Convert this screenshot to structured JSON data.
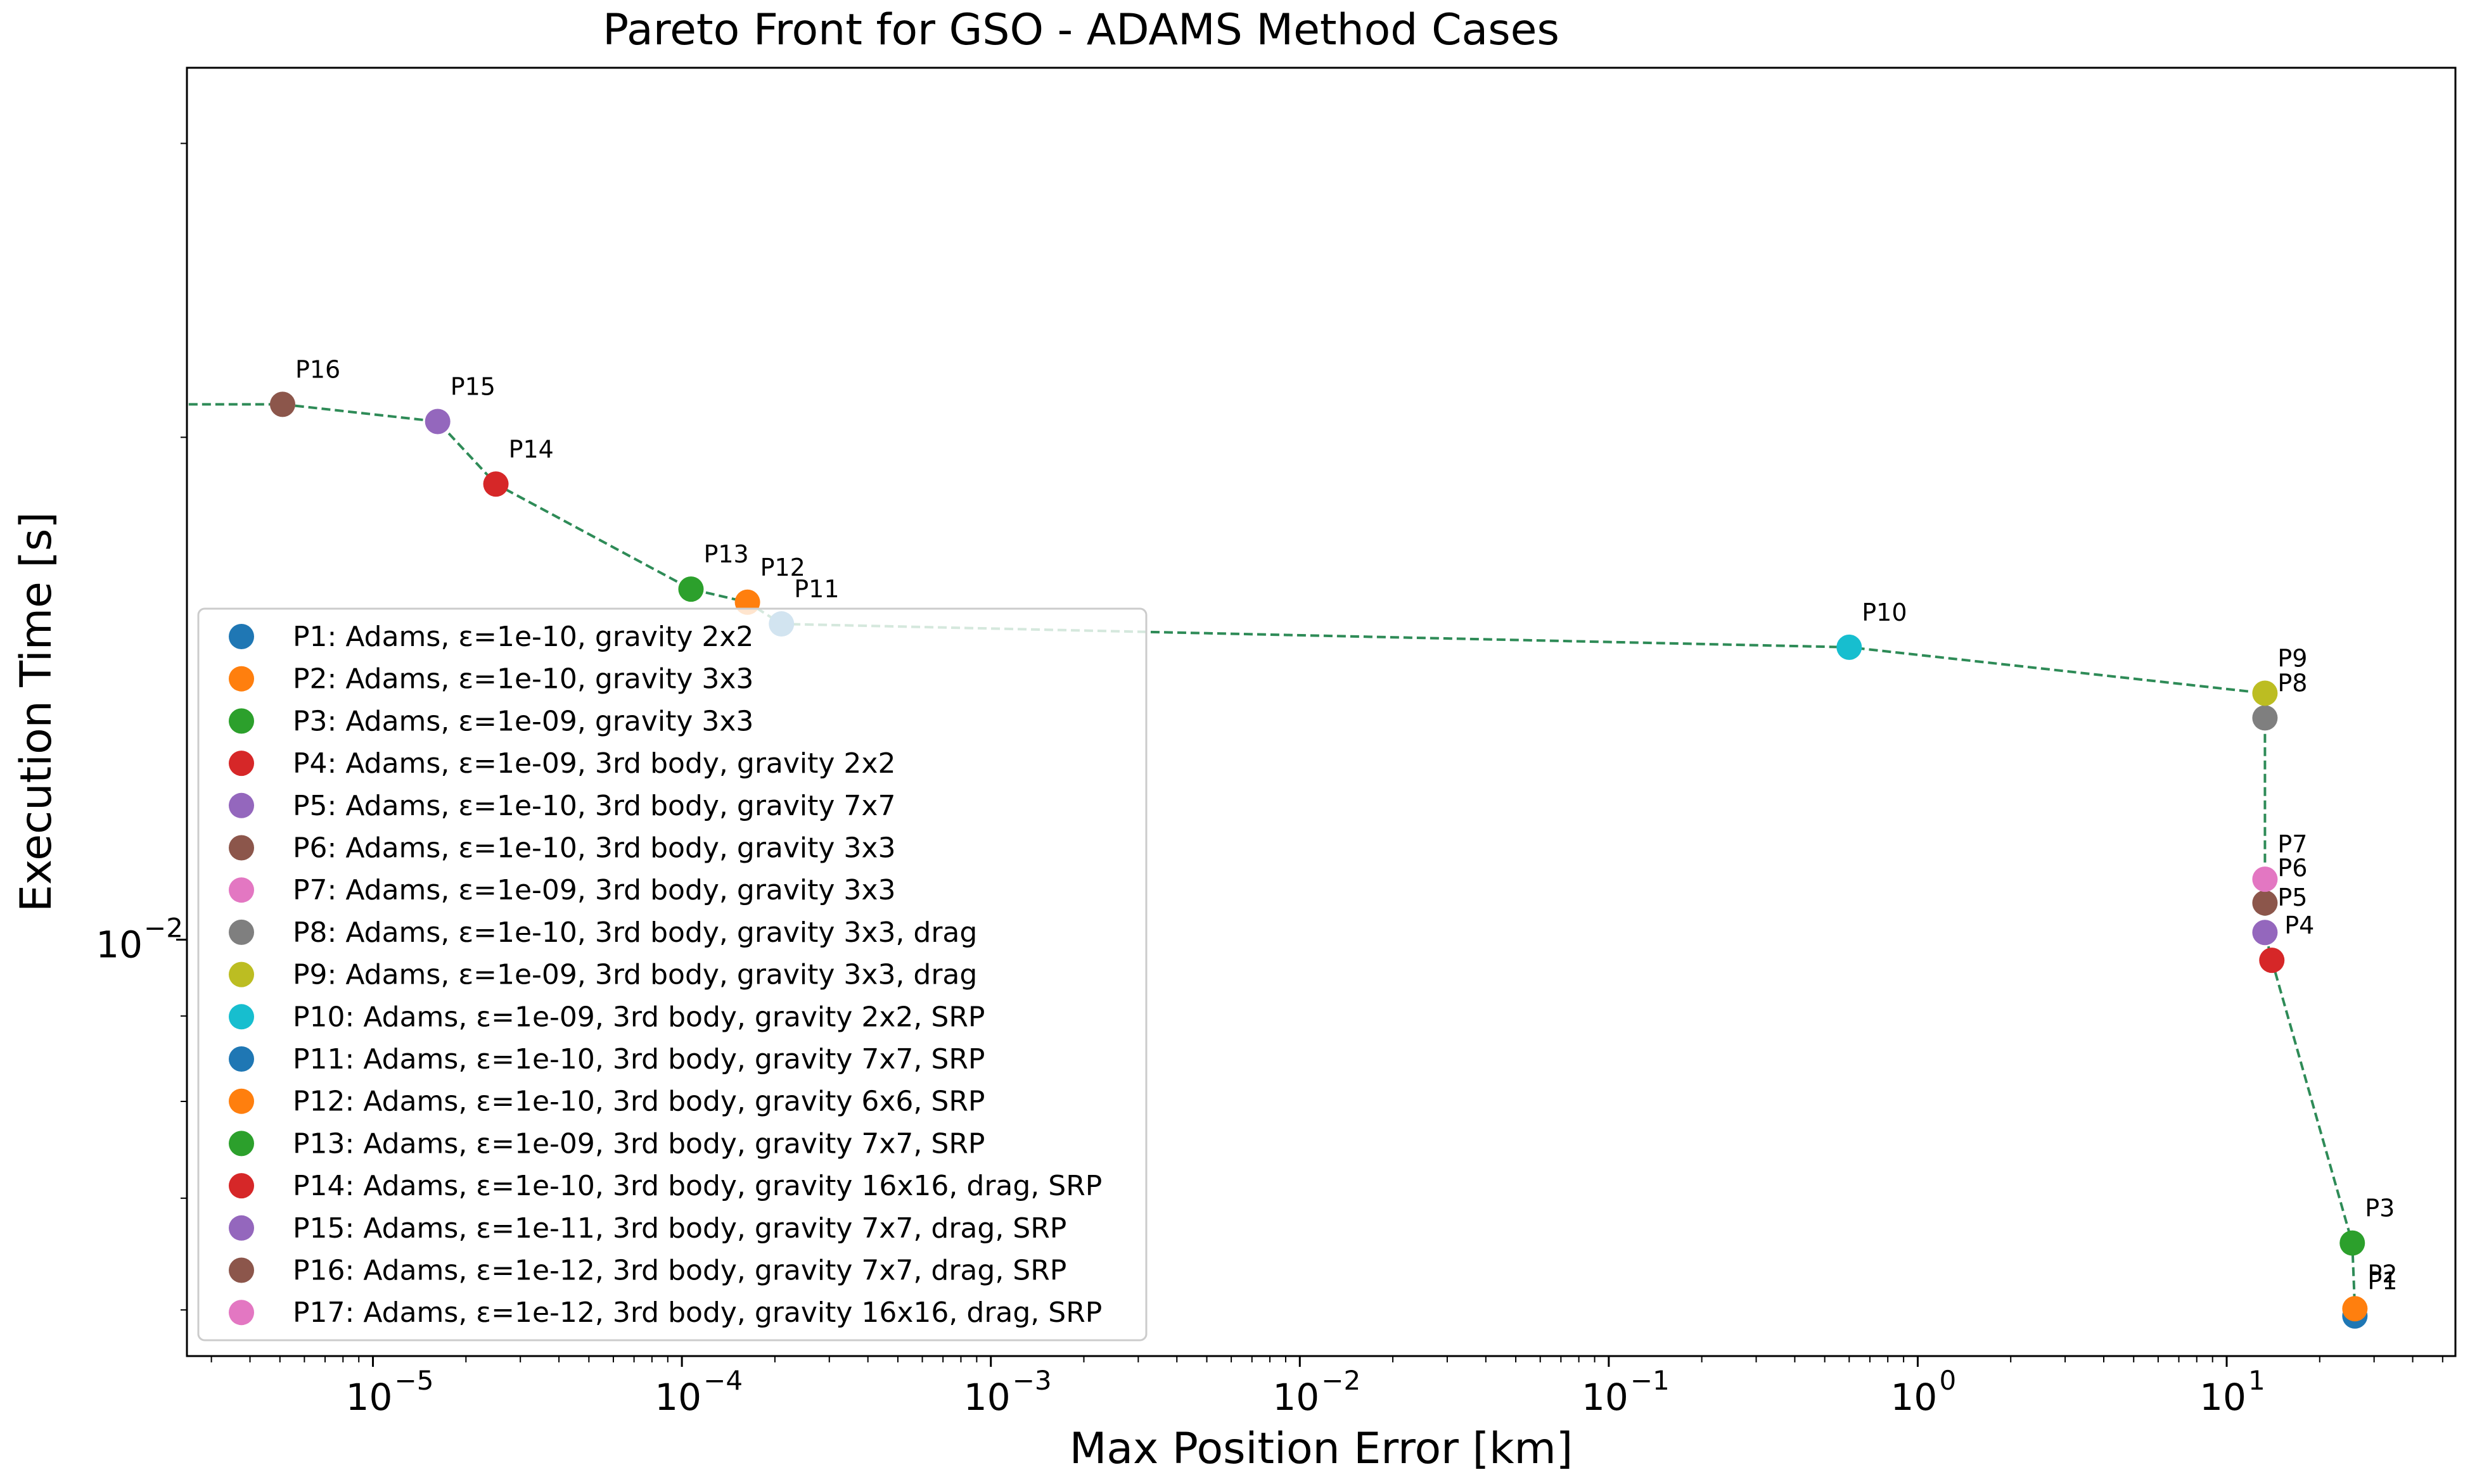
{
  "chart_data": {
    "type": "scatter",
    "title": "Pareto Front for GSO - ADAMS Method Cases",
    "xlabel": "Max Position Error [km]",
    "ylabel": "Execution Time [s]",
    "xscale": "log",
    "yscale": "log",
    "xlim": [
      2.5e-06,
      55
    ],
    "ylim": [
      0.00563,
      0.0333
    ],
    "x_tick_values": [
      1e-05,
      0.0001,
      0.001,
      0.01,
      0.1,
      1,
      10
    ],
    "x_tick_labels": [
      "10",
      "10",
      "10",
      "10",
      "10",
      "10",
      "10"
    ],
    "x_tick_exponents": [
      "−5",
      "−4",
      "−3",
      "−2",
      "−1",
      "0",
      "1"
    ],
    "y_tick_values": [
      0.01
    ],
    "y_tick_labels": [
      "10"
    ],
    "y_tick_exponents": [
      "−2"
    ],
    "grid": false,
    "legend_position": "lower-left",
    "front_line_color": "#2e8b57",
    "points": [
      {
        "label": "P1",
        "x": 26.0,
        "y": 0.00595,
        "color": "#1f77b4",
        "legend": "P1: Adams, ε=1e-10, gravity 2x2"
      },
      {
        "label": "P2",
        "x": 26.0,
        "y": 0.00601,
        "color": "#ff7f0e",
        "legend": "P2: Adams, ε=1e-10, gravity 3x3"
      },
      {
        "label": "P3",
        "x": 25.5,
        "y": 0.00658,
        "color": "#2ca02c",
        "legend": "P3: Adams, ε=1e-09, gravity 3x3"
      },
      {
        "label": "P4",
        "x": 14.0,
        "y": 0.00972,
        "color": "#d62728",
        "legend": "P4: Adams, ε=1e-09, 3rd body, gravity 2x2"
      },
      {
        "label": "P5",
        "x": 13.3,
        "y": 0.0101,
        "color": "#9467bd",
        "legend": "P5: Adams, ε=1e-10, 3rd body, gravity 7x7"
      },
      {
        "label": "P6",
        "x": 13.3,
        "y": 0.01052,
        "color": "#8c564b",
        "legend": "P6: Adams, ε=1e-10, 3rd body, gravity 3x3"
      },
      {
        "label": "P7",
        "x": 13.3,
        "y": 0.01087,
        "color": "#e377c2",
        "legend": "P7: Adams, ε=1e-09, 3rd body, gravity 3x3"
      },
      {
        "label": "P8",
        "x": 13.3,
        "y": 0.01358,
        "color": "#7f7f7f",
        "legend": "P8: Adams, ε=1e-10, 3rd body, gravity 3x3, drag"
      },
      {
        "label": "P9",
        "x": 13.3,
        "y": 0.01405,
        "color": "#bcbd22",
        "legend": "P9: Adams, ε=1e-09, 3rd body, gravity 3x3, drag"
      },
      {
        "label": "P10",
        "x": 0.6,
        "y": 0.01497,
        "color": "#17becf",
        "legend": "P10: Adams, ε=1e-09, 3rd body, gravity 2x2, SRP"
      },
      {
        "label": "P11",
        "x": 0.00021,
        "y": 0.01546,
        "color": "#1f77b4",
        "legend": "P11: Adams, ε=1e-10, 3rd body, gravity 7x7, SRP"
      },
      {
        "label": "P12",
        "x": 0.000163,
        "y": 0.01593,
        "color": "#ff7f0e",
        "legend": "P12: Adams, ε=1e-10, 3rd body, gravity 6x6, SRP"
      },
      {
        "label": "P13",
        "x": 0.000107,
        "y": 0.01622,
        "color": "#2ca02c",
        "legend": "P13: Adams, ε=1e-09, 3rd body, gravity 7x7, SRP"
      },
      {
        "label": "P14",
        "x": 2.5e-05,
        "y": 0.01875,
        "color": "#d62728",
        "legend": "P14: Adams, ε=1e-10, 3rd body, gravity 16x16, drag, SRP"
      },
      {
        "label": "P15",
        "x": 1.62e-05,
        "y": 0.02044,
        "color": "#9467bd",
        "legend": "P15: Adams, ε=1e-11, 3rd body, gravity 7x7, drag, SRP"
      },
      {
        "label": "P16",
        "x": 5.1e-06,
        "y": 0.02093,
        "color": "#8c564b",
        "legend": "P16: Adams, ε=1e-12, 3rd body, gravity 7x7, drag, SRP"
      },
      {
        "label": "P17",
        "x": null,
        "y": null,
        "color": "#e377c2",
        "legend": "P17: Adams, ε=1e-12, 3rd body, gravity 16x16, drag, SRP"
      }
    ],
    "front_order": [
      "P1",
      "P2",
      "P3",
      "P4",
      "P5",
      "P6",
      "P7",
      "P8",
      "P9",
      "P10",
      "P11",
      "P12",
      "P13",
      "P14",
      "P15",
      "P16"
    ],
    "front_extends_to_left_edge": true
  }
}
